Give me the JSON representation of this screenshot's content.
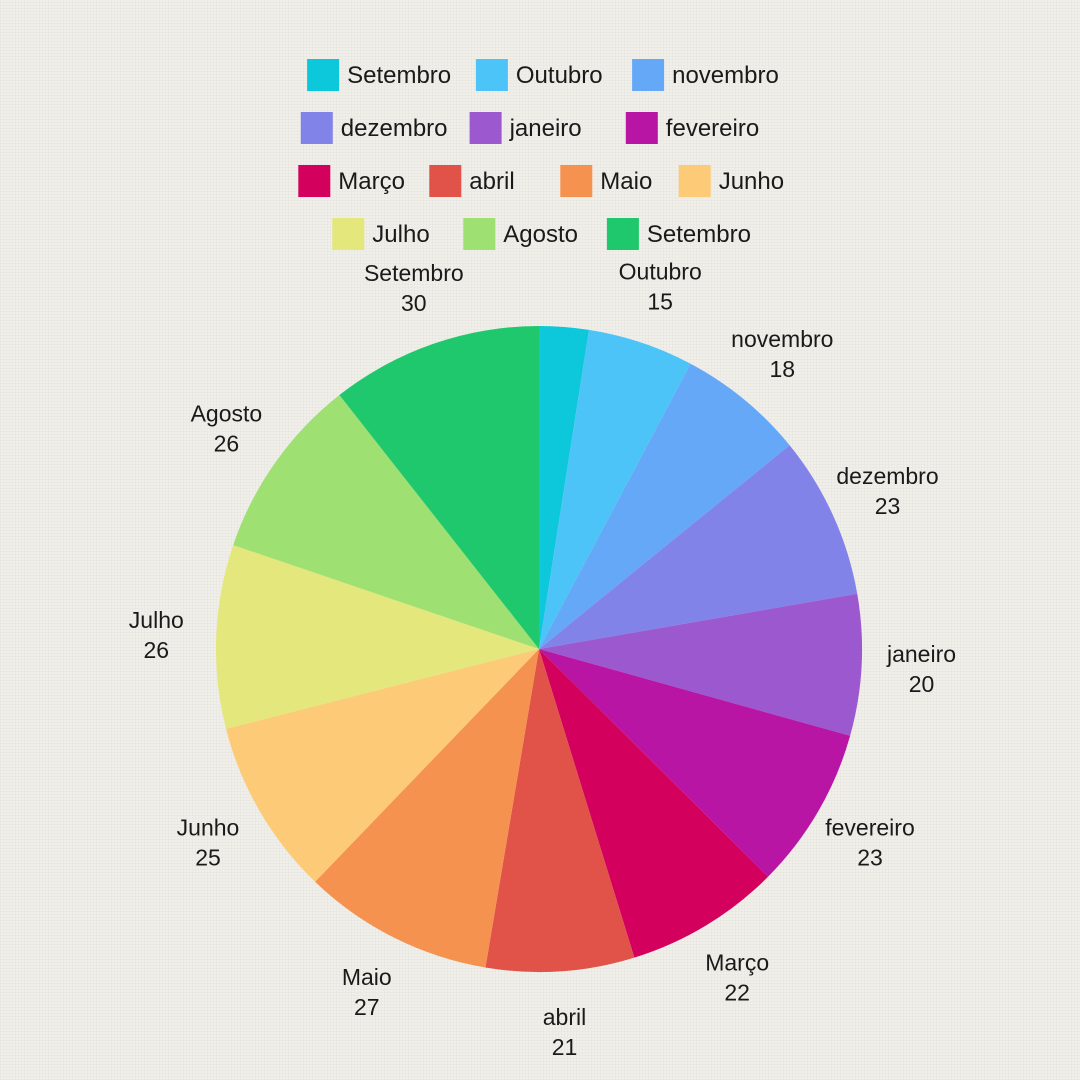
{
  "chart_data": {
    "type": "pie",
    "start_angle_deg": 0,
    "direction": "clockwise",
    "legend_position": "top",
    "legend_rows": [
      [
        0,
        1,
        2
      ],
      [
        3,
        4,
        5
      ],
      [
        6,
        7,
        8,
        9
      ],
      [
        10,
        11,
        12
      ]
    ],
    "slices": [
      {
        "label": "Setembro",
        "value": 7,
        "color": "#0dc8db"
      },
      {
        "label": "Outubro",
        "value": 15,
        "color": "#4cc4f8"
      },
      {
        "label": "novembro",
        "value": 18,
        "color": "#66a8f8"
      },
      {
        "label": "dezembro",
        "value": 23,
        "color": "#8283e8"
      },
      {
        "label": "janeiro",
        "value": 20,
        "color": "#9b58cf"
      },
      {
        "label": "fevereiro",
        "value": 23,
        "color": "#b815a4"
      },
      {
        "label": "Março",
        "value": 22,
        "color": "#d3015d"
      },
      {
        "label": "abril",
        "value": 21,
        "color": "#e15248"
      },
      {
        "label": "Maio",
        "value": 27,
        "color": "#f5924f"
      },
      {
        "label": "Junho",
        "value": 25,
        "color": "#fdcb78"
      },
      {
        "label": "Julho",
        "value": 26,
        "color": "#e4e77c"
      },
      {
        "label": "Agosto",
        "value": 26,
        "color": "#9ee071"
      },
      {
        "label": "Setembro",
        "value": 30,
        "color": "#1fc86c"
      }
    ],
    "slice_labels": [
      {
        "slice": 1,
        "text": "Outubro",
        "value": "15"
      },
      {
        "slice": 2,
        "text": "novembro",
        "value": "18"
      },
      {
        "slice": 3,
        "text": "dezembro",
        "value": "23"
      },
      {
        "slice": 4,
        "text": "janeiro",
        "value": "20"
      },
      {
        "slice": 5,
        "text": "fevereiro",
        "value": "23"
      },
      {
        "slice": 6,
        "text": "Março",
        "value": "22"
      },
      {
        "slice": 7,
        "text": "abril",
        "value": "21"
      },
      {
        "slice": 8,
        "text": "Maio",
        "value": "27"
      },
      {
        "slice": 9,
        "text": "Junho",
        "value": "25"
      },
      {
        "slice": 10,
        "text": "Julho",
        "value": "26"
      },
      {
        "slice": 11,
        "text": "Agosto",
        "value": "26"
      },
      {
        "slice": 12,
        "text": "Setembro",
        "value": "30"
      }
    ]
  }
}
